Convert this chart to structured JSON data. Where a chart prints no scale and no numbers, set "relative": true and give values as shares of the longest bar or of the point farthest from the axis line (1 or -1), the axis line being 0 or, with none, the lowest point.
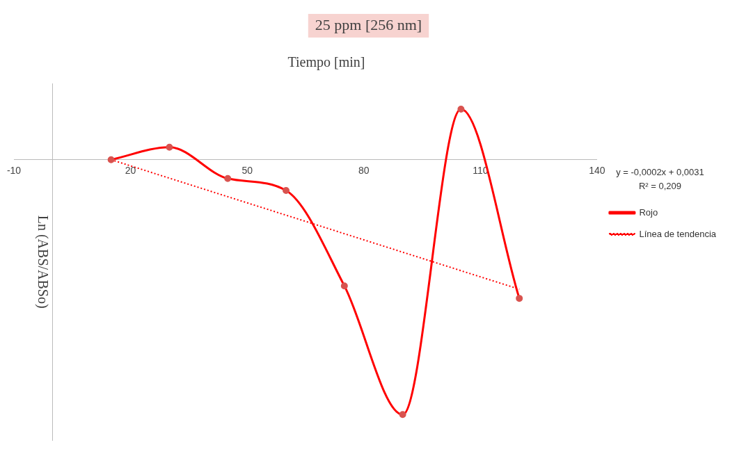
{
  "chart_data": {
    "type": "line",
    "title": "25 ppm [256 nm]",
    "xlabel": "Tiempo [min]",
    "ylabel": "Ln (ABS/ABSo)",
    "relative": true,
    "x": [
      15,
      30,
      45,
      60,
      75,
      90,
      105,
      120
    ],
    "xlim": [
      -10,
      140
    ],
    "xticks": [
      -10,
      20,
      50,
      80,
      110,
      140
    ],
    "series": [
      {
        "name": "Rojo",
        "color": "#ff0000",
        "marker": "circle",
        "line_style": "solid",
        "values": [
          0,
          0.049,
          -0.074,
          -0.121,
          -0.495,
          -1,
          0.198,
          -0.544
        ]
      },
      {
        "name": "Línea de tendencia",
        "type": "line",
        "color": "#ff0000",
        "marker": "none",
        "line_style": "dotted",
        "x": [
          15,
          120
        ],
        "values": [
          0,
          -0.508
        ]
      }
    ],
    "legend": "right",
    "annotations": [
      "y = -0,0002x + 0,0031",
      "R² = 0,209"
    ]
  }
}
